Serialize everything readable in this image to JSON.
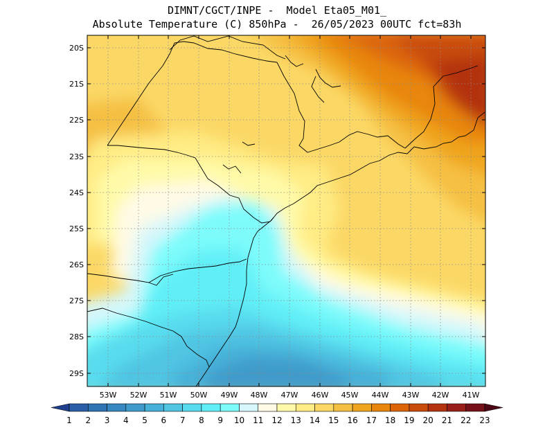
{
  "header": {
    "line1": "DIMNT/CGCT/INPE -  Model Eta05_M01_",
    "line2": "Absolute Temperature (C) 850hPa -  26/05/2023 00UTC fct=83h"
  },
  "map": {
    "lat_labels": [
      "20S",
      "21S",
      "22S",
      "23S",
      "24S",
      "25S",
      "26S",
      "27S",
      "28S",
      "29S"
    ],
    "lon_labels": [
      "53W",
      "52W",
      "51W",
      "50W",
      "49W",
      "48W",
      "47W",
      "46W",
      "45W",
      "44W",
      "43W",
      "42W",
      "41W"
    ],
    "grid": "dotted"
  },
  "colorbar": {
    "labels": [
      "1",
      "2",
      "3",
      "4",
      "5",
      "6",
      "7",
      "8",
      "9",
      "10",
      "11",
      "12",
      "13",
      "14",
      "15",
      "16",
      "17",
      "18",
      "19",
      "20",
      "21",
      "22",
      "23"
    ],
    "colors": [
      "#1f3f8f",
      "#2a5fa8",
      "#2f74b3",
      "#3688c0",
      "#3f9bcb",
      "#47b0d8",
      "#4fc5e3",
      "#58dbee",
      "#61eff7",
      "#7dfbfb",
      "#d6f7fb",
      "#fffae6",
      "#fffaa9",
      "#ffec84",
      "#fbd866",
      "#f5c042",
      "#f0a51e",
      "#e8860c",
      "#dc6508",
      "#c94b0a",
      "#b3330f",
      "#962017",
      "#731018",
      "#4d0614"
    ]
  }
}
